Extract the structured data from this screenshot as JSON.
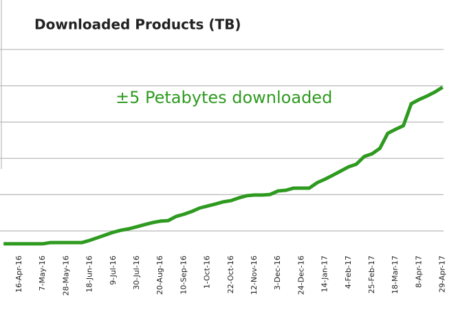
{
  "chart_data": {
    "type": "line",
    "title": "Downloaded Products (TB)",
    "annotation": "±5 Petabytes downloaded",
    "categories": [
      null,
      null,
      "16-Apr-16",
      null,
      null,
      "7-May-16",
      null,
      null,
      "28-May-16",
      null,
      null,
      "18-Jun-16",
      null,
      null,
      "9-Jul-16",
      null,
      null,
      "30-Jul-16",
      null,
      null,
      "20-Aug-16",
      null,
      null,
      "10-Sep-16",
      null,
      null,
      "1-Oct-16",
      null,
      null,
      "22-Oct-16",
      null,
      null,
      "12-Nov-16",
      null,
      null,
      "3-Dec-16",
      null,
      null,
      "24-Dec-16",
      null,
      null,
      "14-Jan-17",
      null,
      null,
      "4-Feb-17",
      null,
      null,
      "25-Feb-17",
      null,
      null,
      "18-Mar-17",
      null,
      null,
      "8-Apr-17",
      null,
      null,
      "29-Apr-17"
    ],
    "series": [
      {
        "name": "Downloaded Products",
        "color": "#2e9a1f",
        "values": [
          645,
          645,
          645,
          645,
          645,
          645,
          680,
          680,
          680,
          680,
          680,
          740,
          815,
          890,
          965,
          1020,
          1060,
          1115,
          1175,
          1230,
          1270,
          1285,
          1400,
          1460,
          1535,
          1630,
          1685,
          1740,
          1800,
          1835,
          1910,
          1970,
          1990,
          1990,
          2005,
          2100,
          2120,
          2180,
          2180,
          2180,
          2330,
          2425,
          2535,
          2650,
          2765,
          2840,
          3050,
          3125,
          3275,
          3690,
          3800,
          3900,
          4505,
          4620,
          4715,
          4825,
          4960
        ]
      }
    ],
    "ylim": [
      0,
      6000
    ],
    "yticks": [
      1000,
      2000,
      3000,
      4000,
      5000,
      6000
    ],
    "grid": true
  }
}
